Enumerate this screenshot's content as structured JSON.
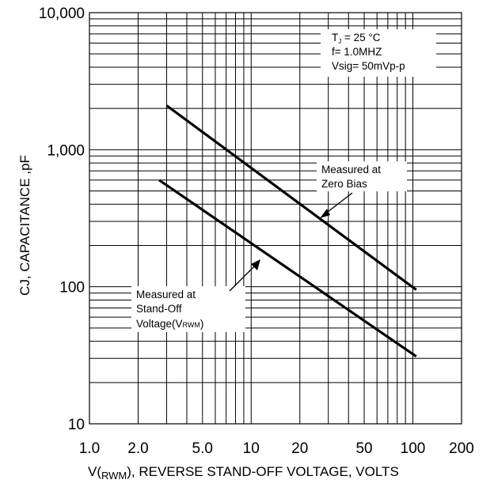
{
  "chart_data": {
    "type": "line",
    "xscale": "log",
    "yscale": "log",
    "xlim": [
      1.0,
      200
    ],
    "ylim": [
      10,
      10000
    ],
    "grid": true,
    "xlabel": "V(RWM), REVERSE STAND-OFF VOLTAGE, VOLTS",
    "xlabel_parts": {
      "pre": "V(",
      "sub": "RWM",
      "post": "), REVERSE STAND-OFF VOLTAGE, VOLTS"
    },
    "ylabel": "CJ, CAPACITANCE ,pF",
    "xticks": [
      {
        "v": 1.0,
        "label": "1.0"
      },
      {
        "v": 2.0,
        "label": "2.0"
      },
      {
        "v": 5.0,
        "label": "5.0"
      },
      {
        "v": 10,
        "label": "10"
      },
      {
        "v": 20,
        "label": "20"
      },
      {
        "v": 50,
        "label": "50"
      },
      {
        "v": 100,
        "label": "100"
      },
      {
        "v": 200,
        "label": "200"
      }
    ],
    "yticks": [
      {
        "v": 10,
        "label": "10"
      },
      {
        "v": 100,
        "label": "100"
      },
      {
        "v": 1000,
        "label": "1,000"
      },
      {
        "v": 10000,
        "label": "10,000"
      }
    ],
    "series": [
      {
        "key": "zero-bias",
        "x": [
          3.0,
          105
        ],
        "y": [
          2100,
          95
        ]
      },
      {
        "key": "stand-off",
        "x": [
          2.7,
          105
        ],
        "y": [
          600,
          31
        ]
      }
    ],
    "conditions": {
      "line1_pre": "T",
      "line1_sub": "J",
      "line1_post": " = 25 °C",
      "line2": "f= 1.0MHZ",
      "line3": "Vsig= 50mVp-p"
    },
    "annotations": {
      "zero_bias": [
        "Measured at",
        "Zero Bias"
      ],
      "stand_off": [
        "Measured at",
        "Stand-Off",
        "Voltage(V",
        "RWM",
        ")"
      ]
    }
  }
}
